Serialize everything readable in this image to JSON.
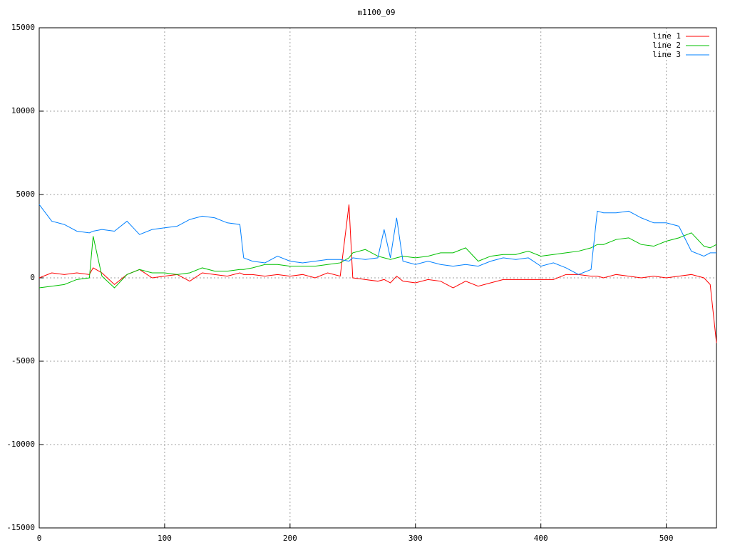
{
  "chart_data": {
    "type": "line",
    "title": "m1100_09",
    "x": [
      0,
      10,
      20,
      30,
      40,
      43,
      50,
      60,
      70,
      80,
      90,
      100,
      110,
      120,
      130,
      140,
      150,
      160,
      163,
      170,
      180,
      190,
      200,
      210,
      220,
      230,
      240,
      247,
      250,
      260,
      270,
      275,
      280,
      285,
      290,
      300,
      310,
      320,
      330,
      340,
      350,
      360,
      370,
      380,
      390,
      400,
      410,
      420,
      430,
      440,
      445,
      450,
      460,
      470,
      480,
      490,
      500,
      510,
      520,
      530,
      535,
      540
    ],
    "series": [
      {
        "name": "line 1",
        "color": "#ff0000",
        "values": [
          0,
          300,
          200,
          300,
          200,
          600,
          300,
          -400,
          200,
          500,
          0,
          100,
          200,
          -200,
          300,
          200,
          100,
          300,
          200,
          200,
          100,
          200,
          100,
          200,
          0,
          300,
          100,
          4400,
          0,
          -100,
          -200,
          -100,
          -300,
          100,
          -200,
          -300,
          -100,
          -200,
          -600,
          -200,
          -500,
          -300,
          -100,
          -100,
          -100,
          -100,
          -100,
          200,
          200,
          100,
          100,
          0,
          200,
          100,
          0,
          100,
          0,
          100,
          200,
          0,
          -400,
          -3900
        ]
      },
      {
        "name": "line 2",
        "color": "#00c000",
        "values": [
          -600,
          -500,
          -400,
          -100,
          0,
          2500,
          100,
          -600,
          200,
          500,
          300,
          300,
          200,
          300,
          600,
          400,
          400,
          500,
          500,
          600,
          800,
          800,
          700,
          700,
          700,
          800,
          900,
          1200,
          1500,
          1700,
          1300,
          1200,
          1100,
          1200,
          1300,
          1200,
          1300,
          1500,
          1500,
          1800,
          1000,
          1300,
          1400,
          1400,
          1600,
          1300,
          1400,
          1500,
          1600,
          1800,
          2000,
          2000,
          2300,
          2400,
          2000,
          1900,
          2200,
          2400,
          2700,
          1900,
          1800,
          2000
        ]
      },
      {
        "name": "line 3",
        "color": "#0080ff",
        "values": [
          4400,
          3400,
          3200,
          2800,
          2700,
          2800,
          2900,
          2800,
          3400,
          2600,
          2900,
          3000,
          3100,
          3500,
          3700,
          3600,
          3300,
          3200,
          1200,
          1000,
          900,
          1300,
          1000,
          900,
          1000,
          1100,
          1100,
          1000,
          1200,
          1100,
          1200,
          2900,
          1200,
          3600,
          1000,
          800,
          1000,
          800,
          700,
          800,
          700,
          1000,
          1200,
          1100,
          1200,
          700,
          900,
          600,
          200,
          500,
          4000,
          3900,
          3900,
          4000,
          3600,
          3300,
          3300,
          3100,
          1600,
          1300,
          1500,
          1500
        ]
      }
    ],
    "xlim": [
      0,
      540
    ],
    "xticks": [
      0,
      100,
      200,
      300,
      400,
      500
    ],
    "ylim": [
      -15000,
      15000
    ],
    "yticks": [
      -15000,
      -10000,
      -5000,
      0,
      5000,
      10000,
      15000
    ],
    "grid": true,
    "legend": "top-right"
  }
}
